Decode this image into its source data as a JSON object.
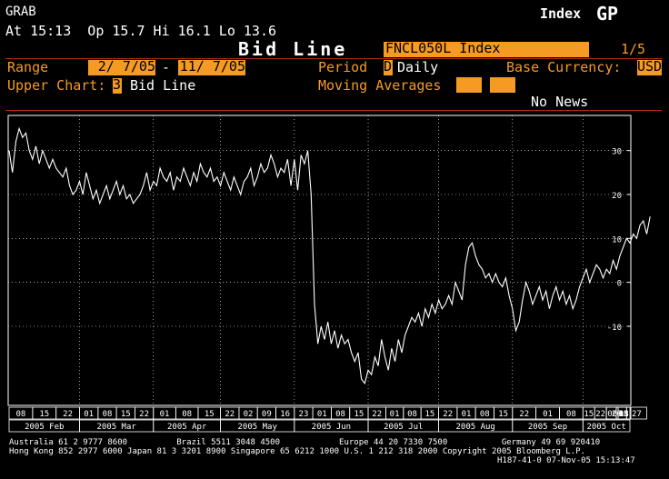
{
  "header": {
    "app": "GRAB",
    "quote": "At 15:13  Op 15.7 Hi 16.1 Lo 13.6",
    "menu_label": "Index",
    "function": "GP",
    "title": "Bid Line",
    "security": "FNCL050L Index",
    "page": "1/5"
  },
  "settings": {
    "range_label": "Range",
    "range_start": "2/ 7/05",
    "range_dash": "-",
    "range_end": "11/ 7/05",
    "period_label": "Period",
    "period_code": "D",
    "period_value": "Daily",
    "currency_label": "Base Currency:",
    "currency_value": "USD",
    "upper_label": "Upper Chart:",
    "upper_code": "3",
    "upper_value": "Bid Line",
    "ma_label": "Moving Averages",
    "news": "No News"
  },
  "chart_data": {
    "type": "line",
    "title": "Bid Line",
    "ylim": [
      -28,
      38
    ],
    "yticks": [
      "30",
      "20",
      "10",
      "0",
      "-10"
    ],
    "grid": true,
    "days_in_range": 185,
    "day_ticks": [
      "08",
      "15",
      "22",
      "01",
      "08",
      "15",
      "22",
      "01",
      "08",
      "15",
      "22",
      "02",
      "09",
      "16",
      "23",
      "01",
      "08",
      "15",
      "22",
      "01",
      "08",
      "15",
      "22",
      "01",
      "08",
      "15",
      "22",
      "01",
      "08",
      "15",
      "22",
      "06",
      "13",
      "20",
      "27",
      "03",
      "11",
      "18",
      "25",
      "01",
      "08"
    ],
    "months": [
      "2005 Feb",
      "2005 Mar",
      "2005 Apr",
      "2005 May",
      "2005 Jun",
      "2005 Jul",
      "2005 Aug",
      "2005 Sep",
      "2005 Oct"
    ],
    "series": [
      {
        "color": "#ffffff",
        "points": [
          [
            0,
            30
          ],
          [
            1,
            25
          ],
          [
            2,
            32
          ],
          [
            3,
            35
          ],
          [
            4,
            33
          ],
          [
            5,
            34
          ],
          [
            6,
            30
          ],
          [
            7,
            28
          ],
          [
            8,
            31
          ],
          [
            9,
            27
          ],
          [
            10,
            30
          ],
          [
            11,
            28
          ],
          [
            12,
            26
          ],
          [
            13,
            28
          ],
          [
            14,
            26
          ],
          [
            15,
            25
          ],
          [
            16,
            24
          ],
          [
            17,
            26
          ],
          [
            18,
            22
          ],
          [
            19,
            20
          ],
          [
            20,
            21
          ],
          [
            21,
            23
          ],
          [
            22,
            20
          ],
          [
            23,
            25
          ],
          [
            24,
            22
          ],
          [
            25,
            19
          ],
          [
            26,
            21
          ],
          [
            27,
            18
          ],
          [
            28,
            20
          ],
          [
            29,
            22
          ],
          [
            30,
            19
          ],
          [
            31,
            21
          ],
          [
            32,
            23
          ],
          [
            33,
            20
          ],
          [
            34,
            22
          ],
          [
            35,
            19
          ],
          [
            36,
            20
          ],
          [
            37,
            18
          ],
          [
            38,
            19
          ],
          [
            39,
            20
          ],
          [
            40,
            22
          ],
          [
            41,
            25
          ],
          [
            42,
            21
          ],
          [
            43,
            23
          ],
          [
            44,
            22
          ],
          [
            45,
            26
          ],
          [
            46,
            24
          ],
          [
            47,
            23
          ],
          [
            48,
            25
          ],
          [
            49,
            21
          ],
          [
            50,
            24
          ],
          [
            51,
            23
          ],
          [
            52,
            26
          ],
          [
            53,
            24
          ],
          [
            54,
            22
          ],
          [
            55,
            25
          ],
          [
            56,
            23
          ],
          [
            57,
            27
          ],
          [
            58,
            25
          ],
          [
            59,
            24
          ],
          [
            60,
            26
          ],
          [
            61,
            23
          ],
          [
            62,
            24
          ],
          [
            63,
            22
          ],
          [
            64,
            25
          ],
          [
            65,
            23
          ],
          [
            66,
            21
          ],
          [
            67,
            24
          ],
          [
            68,
            22
          ],
          [
            69,
            20
          ],
          [
            70,
            23
          ],
          [
            71,
            24
          ],
          [
            72,
            26
          ],
          [
            73,
            22
          ],
          [
            74,
            24
          ],
          [
            75,
            27
          ],
          [
            76,
            25
          ],
          [
            77,
            26
          ],
          [
            78,
            29
          ],
          [
            79,
            27
          ],
          [
            80,
            24
          ],
          [
            81,
            26
          ],
          [
            82,
            25
          ],
          [
            83,
            28
          ],
          [
            84,
            22
          ],
          [
            85,
            28
          ],
          [
            86,
            21
          ],
          [
            87,
            29
          ],
          [
            88,
            27
          ],
          [
            89,
            30
          ],
          [
            90,
            20
          ],
          [
            91,
            -5
          ],
          [
            92,
            -14
          ],
          [
            93,
            -10
          ],
          [
            94,
            -13
          ],
          [
            95,
            -9
          ],
          [
            96,
            -14
          ],
          [
            97,
            -11
          ],
          [
            98,
            -15
          ],
          [
            99,
            -12
          ],
          [
            100,
            -14
          ],
          [
            101,
            -13
          ],
          [
            102,
            -16
          ],
          [
            103,
            -18
          ],
          [
            104,
            -16
          ],
          [
            105,
            -22
          ],
          [
            106,
            -23
          ],
          [
            107,
            -20
          ],
          [
            108,
            -21
          ],
          [
            109,
            -17
          ],
          [
            110,
            -19
          ],
          [
            111,
            -13
          ],
          [
            112,
            -17
          ],
          [
            113,
            -20
          ],
          [
            114,
            -15
          ],
          [
            115,
            -18
          ],
          [
            116,
            -13
          ],
          [
            117,
            -16
          ],
          [
            118,
            -12
          ],
          [
            119,
            -10
          ],
          [
            120,
            -8
          ],
          [
            121,
            -9
          ],
          [
            122,
            -7
          ],
          [
            123,
            -10
          ],
          [
            124,
            -6
          ],
          [
            125,
            -8
          ],
          [
            126,
            -5
          ],
          [
            127,
            -7
          ],
          [
            128,
            -4
          ],
          [
            129,
            -6
          ],
          [
            130,
            -5
          ],
          [
            131,
            -3
          ],
          [
            132,
            -5
          ],
          [
            133,
            0
          ],
          [
            134,
            -2
          ],
          [
            135,
            -4
          ],
          [
            136,
            4
          ],
          [
            137,
            8
          ],
          [
            138,
            9
          ],
          [
            139,
            6
          ],
          [
            140,
            4
          ],
          [
            141,
            3
          ],
          [
            142,
            1
          ],
          [
            143,
            2
          ],
          [
            144,
            0
          ],
          [
            145,
            2
          ],
          [
            146,
            0
          ],
          [
            147,
            -1
          ],
          [
            148,
            1
          ],
          [
            149,
            -3
          ],
          [
            150,
            -6
          ],
          [
            151,
            -11
          ],
          [
            152,
            -9
          ],
          [
            153,
            -4
          ],
          [
            154,
            0
          ],
          [
            155,
            -2
          ],
          [
            156,
            -5
          ],
          [
            157,
            -3
          ],
          [
            158,
            -1
          ],
          [
            159,
            -4
          ],
          [
            160,
            -2
          ],
          [
            161,
            -6
          ],
          [
            162,
            -3
          ],
          [
            163,
            -1
          ],
          [
            164,
            -4
          ],
          [
            165,
            -2
          ],
          [
            166,
            -5
          ],
          [
            167,
            -3
          ],
          [
            168,
            -6
          ],
          [
            169,
            -4
          ],
          [
            170,
            -1
          ],
          [
            171,
            1
          ],
          [
            172,
            3
          ],
          [
            173,
            0
          ],
          [
            174,
            2
          ],
          [
            175,
            4
          ],
          [
            176,
            3
          ],
          [
            177,
            1
          ],
          [
            178,
            3
          ],
          [
            179,
            2
          ],
          [
            180,
            5
          ],
          [
            181,
            3
          ],
          [
            182,
            6
          ],
          [
            183,
            8
          ],
          [
            184,
            10
          ],
          [
            185,
            9
          ],
          [
            186,
            11
          ],
          [
            187,
            10
          ],
          [
            188,
            13
          ],
          [
            189,
            14
          ],
          [
            190,
            11
          ],
          [
            191,
            15
          ]
        ]
      }
    ]
  },
  "footer": {
    "line1": "Australia 61 2 9777 8600          Brazil 5511 3048 4500            Europe 44 20 7330 7500           Germany 49 69 920410",
    "line2": "Hong Kong 852 2977 6000 Japan 81 3 3201 8900 Singapore 65 6212 1000 U.S. 1 212 318 2000 Copyright 2005 Bloomberg L.P.",
    "line3": "H187-41-0 07-Nov-05 15:13:47"
  },
  "colors": {
    "accent": "#f59a23",
    "separator": "#b02a14",
    "background": "#000000",
    "text": "#ffffff"
  }
}
